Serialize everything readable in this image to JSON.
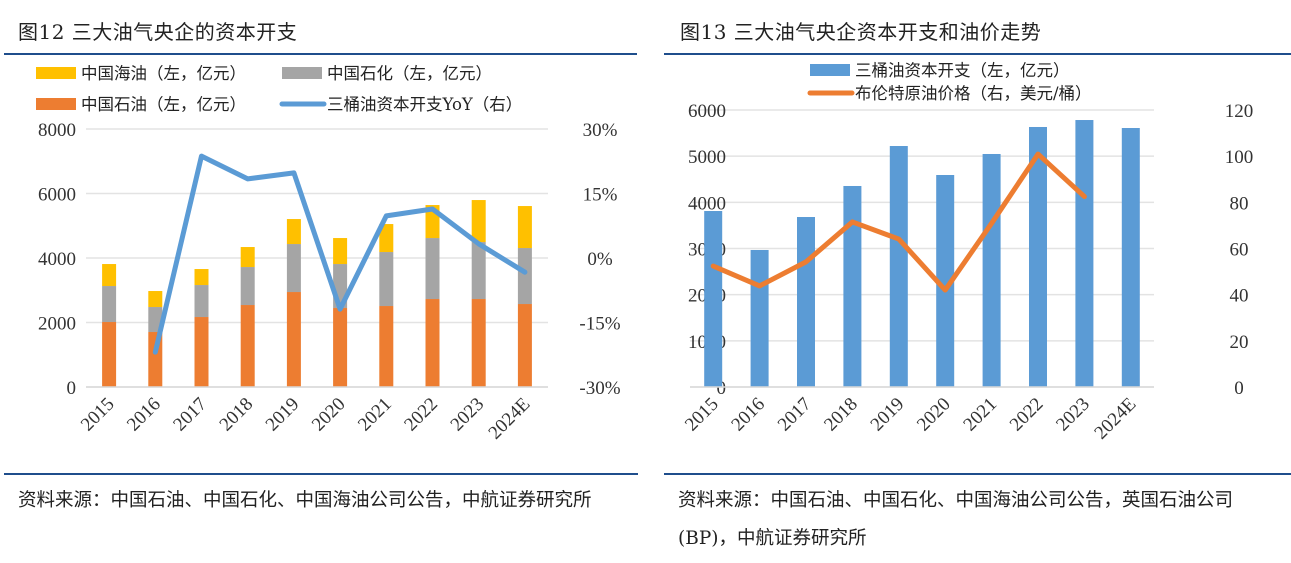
{
  "figures": [
    {
      "title": "图12  三大油气央企的资本开支",
      "source": "资料来源：中国石油、中国石化、中国海油公司公告，中航证券研究所"
    },
    {
      "title": "图13  三大油气央企资本开支和油价走势",
      "source": "资料来源：中国石油、中国石化、中国海油公司公告，英国石油公司(BP)，中航证券研究所"
    }
  ],
  "chart_data": [
    {
      "type": "bar",
      "stacked": true,
      "title": "三大油气央企的资本开支",
      "categories": [
        "2015",
        "2016",
        "2017",
        "2018",
        "2019",
        "2020",
        "2021",
        "2022",
        "2023",
        "2024E"
      ],
      "series": [
        {
          "name": "中国石油（左，亿元）",
          "axis": "left",
          "color": "#ed7d31",
          "values": [
            2015,
            1705,
            2170,
            2542,
            2945,
            2449,
            2511,
            2728,
            2728,
            2573
          ]
        },
        {
          "name": "中国石化（左，亿元）",
          "axis": "left",
          "color": "#a5a5a5",
          "values": [
            1116,
            775,
            992,
            1178,
            1488,
            1364,
            1674,
            1891,
            1767,
            1736
          ]
        },
        {
          "name": "中国海油（左，亿元）",
          "axis": "left",
          "color": "#ffc000",
          "values": [
            682,
            496,
            496,
            620,
            775,
            806,
            868,
            1023,
            1302,
            1302
          ]
        },
        {
          "name": "三桶油资本开支YoY（右）",
          "axis": "right",
          "type": "line",
          "color": "#5b9bd5",
          "values": [
            null,
            -21.9,
            23.7,
            18.4,
            19.8,
            -11.9,
            9.8,
            11.4,
            3.3,
            -3.3
          ]
        }
      ],
      "legend": {
        "placement": "top",
        "order": [
          "中国海油（左，亿元）",
          "中国石化（左，亿元）",
          "中国石油（左，亿元）",
          "三桶油资本开支YoY（右）"
        ]
      },
      "y_left": {
        "ylim": [
          0,
          8000
        ],
        "ticks": [
          "0",
          "2000",
          "4000",
          "6000",
          "8000"
        ],
        "tick_values": [
          0,
          2000,
          4000,
          6000,
          8000
        ]
      },
      "y_right": {
        "ylim": [
          -30,
          30
        ],
        "ticks": [
          "-30%",
          "-15%",
          "0%",
          "15%",
          "30%"
        ],
        "tick_values": [
          -30,
          -15,
          0,
          15,
          30
        ]
      },
      "xlabel": "",
      "ylabel": "",
      "grid": true,
      "xtick_rotation": "diagonal"
    },
    {
      "type": "bar",
      "title": "三大油气央企资本开支和油价走势",
      "categories": [
        "2015",
        "2016",
        "2017",
        "2018",
        "2019",
        "2020",
        "2021",
        "2022",
        "2023",
        "2024E"
      ],
      "series": [
        {
          "name": "三桶油资本开支（左，亿元）",
          "axis": "left",
          "color": "#5b9bd5",
          "values": [
            3812,
            2968,
            3682,
            4354,
            5220,
            4592,
            5047,
            5632,
            5783,
            5610
          ]
        },
        {
          "name": "布伦特原油价格（右，美元/桶）",
          "axis": "right",
          "type": "line",
          "color": "#ed7d31",
          "values": [
            52.4,
            43.8,
            54.2,
            71.5,
            64.1,
            42.0,
            70.9,
            100.9,
            82.5,
            null
          ]
        }
      ],
      "legend": {
        "placement": "top",
        "order": [
          "三桶油资本开支（左，亿元）",
          "布伦特原油价格（右，美元/桶）"
        ]
      },
      "y_left": {
        "ylim": [
          0,
          6000
        ],
        "ticks": [
          "0",
          "1000",
          "2000",
          "3000",
          "4000",
          "5000",
          "6000"
        ],
        "tick_values": [
          0,
          1000,
          2000,
          3000,
          4000,
          5000,
          6000
        ]
      },
      "y_right": {
        "ylim": [
          0,
          120
        ],
        "ticks": [
          "0",
          "20",
          "40",
          "60",
          "80",
          "100",
          "120"
        ],
        "tick_values": [
          0,
          20,
          40,
          60,
          80,
          100,
          120
        ]
      },
      "xlabel": "",
      "ylabel": "",
      "grid": true,
      "xtick_rotation": "diagonal"
    }
  ]
}
